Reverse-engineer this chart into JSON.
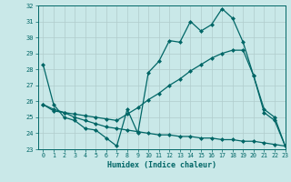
{
  "xlabel": "Humidex (Indice chaleur)",
  "bg_color": "#c9e8e8",
  "line_color": "#006666",
  "x": [
    0,
    1,
    2,
    3,
    4,
    5,
    6,
    7,
    8,
    9,
    10,
    11,
    12,
    13,
    14,
    15,
    16,
    17,
    18,
    19,
    20,
    21,
    22,
    23
  ],
  "line1": [
    28.3,
    25.8,
    25.0,
    24.8,
    24.3,
    24.2,
    23.7,
    23.2,
    25.5,
    24.0,
    27.8,
    28.5,
    29.8,
    29.7,
    31.0,
    30.4,
    30.8,
    31.8,
    31.2,
    29.7,
    27.6,
    25.3,
    24.8,
    23.2
  ],
  "line2": [
    25.8,
    25.4,
    25.3,
    25.2,
    25.1,
    25.0,
    24.9,
    24.8,
    25.2,
    25.6,
    26.1,
    26.5,
    27.0,
    27.4,
    27.9,
    28.3,
    28.7,
    29.0,
    29.2,
    29.2,
    27.6,
    25.5,
    25.0,
    23.2
  ],
  "line3": [
    25.8,
    25.5,
    25.3,
    25.0,
    24.8,
    24.6,
    24.4,
    24.3,
    24.2,
    24.1,
    24.0,
    23.9,
    23.9,
    23.8,
    23.8,
    23.7,
    23.7,
    23.6,
    23.6,
    23.5,
    23.5,
    23.4,
    23.3,
    23.2
  ],
  "ylim": [
    23,
    32
  ],
  "xlim": [
    -0.5,
    23
  ],
  "yticks": [
    23,
    24,
    25,
    26,
    27,
    28,
    29,
    30,
    31,
    32
  ],
  "xticks": [
    0,
    1,
    2,
    3,
    4,
    5,
    6,
    7,
    8,
    9,
    10,
    11,
    12,
    13,
    14,
    15,
    16,
    17,
    18,
    19,
    20,
    21,
    22,
    23
  ],
  "grid_color": "#b0cccc",
  "markersize": 2.5,
  "linewidth": 0.9
}
